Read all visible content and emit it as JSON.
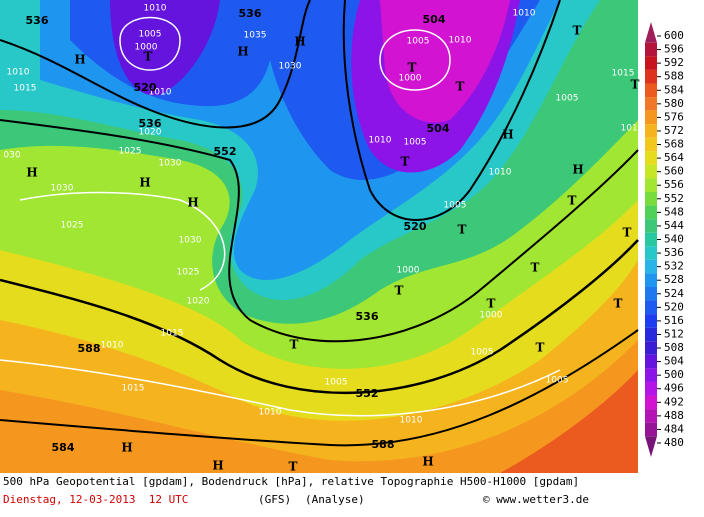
{
  "map": {
    "geopotential_labels": [
      "536",
      "520",
      "536",
      "536",
      "552",
      "588",
      "584",
      "588",
      "552",
      "536",
      "520",
      "504",
      "504"
    ],
    "pressure_labels": [
      "1010",
      "1005",
      "1000",
      "1010",
      "1020",
      "1035",
      "1030",
      "1010",
      "1015",
      "1025",
      "1030",
      "030",
      "1030",
      "1025",
      "1030",
      "1025",
      "1020",
      "1015",
      "1010",
      "1015",
      "1010",
      "1010",
      "1005",
      "1000",
      "1000",
      "1005",
      "1005",
      "1005",
      "1010",
      "1005",
      "1010",
      "1005",
      "1010",
      "1000",
      "1010",
      "1015",
      "1005",
      "1010"
    ],
    "highs_lows": [
      "T",
      "H",
      "H",
      "H",
      "H",
      "H",
      "H",
      "H",
      "H",
      "T",
      "H",
      "T",
      "T",
      "T",
      "T",
      "T",
      "T",
      "T",
      "T",
      "T",
      "T",
      "T",
      "T",
      "H",
      "T",
      "T",
      "H"
    ]
  },
  "colorbar": {
    "ticks": [
      600,
      596,
      592,
      588,
      584,
      580,
      576,
      572,
      568,
      564,
      560,
      556,
      552,
      548,
      544,
      540,
      536,
      532,
      528,
      524,
      520,
      516,
      512,
      508,
      504,
      500,
      496,
      492,
      488,
      484,
      480
    ],
    "colors": [
      "#a01e5a",
      "#b4143c",
      "#c8141e",
      "#dc321e",
      "#eb5a1e",
      "#f07828",
      "#f5961e",
      "#f5b41e",
      "#f0c81e",
      "#e6dc1e",
      "#c8e628",
      "#a0e632",
      "#78dc3c",
      "#50d25a",
      "#3cc878",
      "#28c8a0",
      "#28c8c8",
      "#28b4e6",
      "#1e96f0",
      "#1e78f0",
      "#1e5af0",
      "#1e3cf0",
      "#2828dc",
      "#3c1ed2",
      "#6414dc",
      "#8c14e6",
      "#b414e6",
      "#d214d2",
      "#b414b4",
      "#961496",
      "#781478"
    ]
  },
  "footer": {
    "description": "500 hPa Geopotential [gpdam], Bodendruck [hPa], relative Topographie H500-H1000 [gpdam]",
    "date": "Dienstag, 12-03-2013  12 UTC",
    "model": "(GFS)",
    "run": "(Analyse)",
    "credit": "© www.wetter3.de"
  }
}
